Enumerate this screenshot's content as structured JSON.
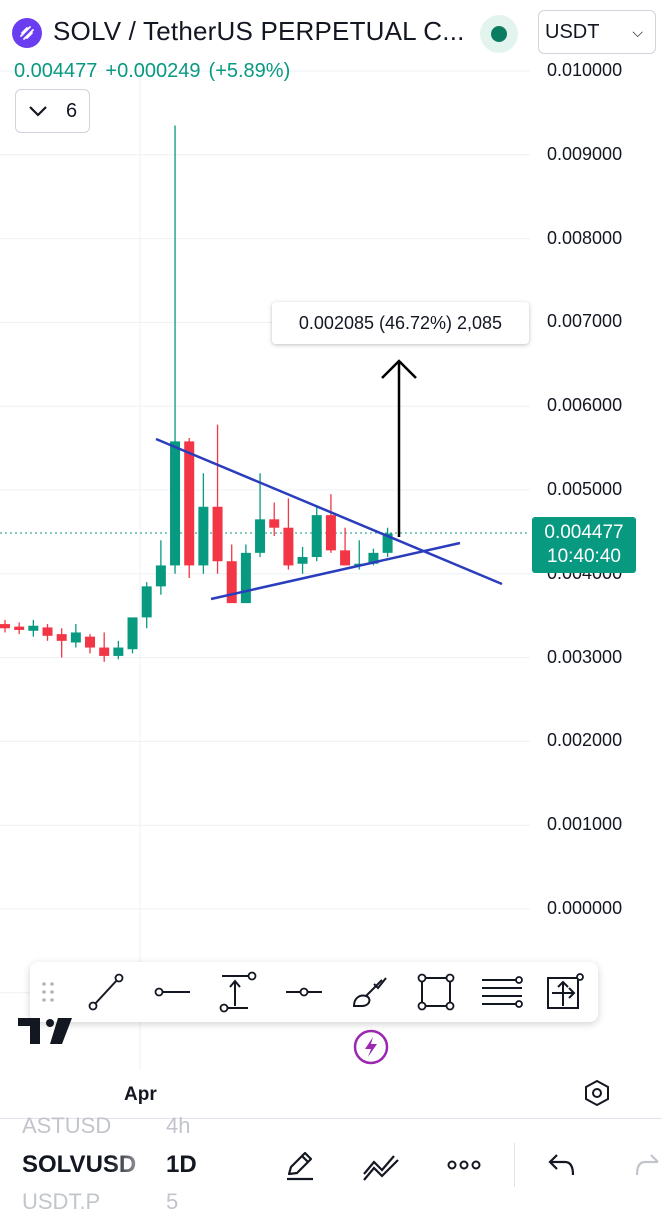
{
  "header": {
    "symbol_title": "SOLV / TetherUS PERPETUAL C...",
    "currency": "USDT",
    "last_price": "0.004477",
    "change_abs": "+0.000249",
    "change_pct": "(+5.89%)",
    "indicators_count": "6",
    "colors": {
      "up": "#089981",
      "down": "#f23645",
      "logo": "#6a3df0"
    }
  },
  "chart_data": {
    "type": "candlestick",
    "y_axis_ticks": [
      "0.010000",
      "0.009000",
      "0.008000",
      "0.007000",
      "0.006000",
      "0.005000",
      "0.004000",
      "0.003000",
      "0.002000",
      "0.001000",
      "0.000000"
    ],
    "ylim": [
      0.0,
      0.01
    ],
    "x_axis_ticks": [
      "Apr"
    ],
    "grid": true,
    "current_price_label": "0.004477",
    "countdown_label": "10:40:40",
    "measure_label": "0.002085 (46.72%) 2,085",
    "candles": [
      {
        "o": 0.0034,
        "h": 0.00345,
        "l": 0.0033,
        "c": 0.00335
      },
      {
        "o": 0.00337,
        "h": 0.00342,
        "l": 0.00328,
        "c": 0.00333
      },
      {
        "o": 0.00332,
        "h": 0.00345,
        "l": 0.00325,
        "c": 0.00338
      },
      {
        "o": 0.00336,
        "h": 0.0034,
        "l": 0.0032,
        "c": 0.00326
      },
      {
        "o": 0.00328,
        "h": 0.00335,
        "l": 0.003,
        "c": 0.0032
      },
      {
        "o": 0.00318,
        "h": 0.0034,
        "l": 0.00312,
        "c": 0.0033
      },
      {
        "o": 0.00325,
        "h": 0.00328,
        "l": 0.00305,
        "c": 0.00312
      },
      {
        "o": 0.00312,
        "h": 0.0033,
        "l": 0.00295,
        "c": 0.00302
      },
      {
        "o": 0.00302,
        "h": 0.0032,
        "l": 0.00298,
        "c": 0.00312
      },
      {
        "o": 0.0031,
        "h": 0.00345,
        "l": 0.00305,
        "c": 0.00348
      },
      {
        "o": 0.00348,
        "h": 0.0039,
        "l": 0.00335,
        "c": 0.00385
      },
      {
        "o": 0.00385,
        "h": 0.0044,
        "l": 0.00375,
        "c": 0.0041
      },
      {
        "o": 0.0041,
        "h": 0.00935,
        "l": 0.004,
        "c": 0.00558
      },
      {
        "o": 0.00558,
        "h": 0.00562,
        "l": 0.00395,
        "c": 0.0041
      },
      {
        "o": 0.0041,
        "h": 0.0052,
        "l": 0.004,
        "c": 0.0048
      },
      {
        "o": 0.0048,
        "h": 0.00578,
        "l": 0.004,
        "c": 0.00415
      },
      {
        "o": 0.00415,
        "h": 0.00435,
        "l": 0.00375,
        "c": 0.00365
      },
      {
        "o": 0.00365,
        "h": 0.00435,
        "l": 0.0037,
        "c": 0.00425
      },
      {
        "o": 0.00425,
        "h": 0.0052,
        "l": 0.0042,
        "c": 0.00465
      },
      {
        "o": 0.00465,
        "h": 0.00485,
        "l": 0.00445,
        "c": 0.00455
      },
      {
        "o": 0.00455,
        "h": 0.0049,
        "l": 0.00405,
        "c": 0.0041
      },
      {
        "o": 0.00412,
        "h": 0.00432,
        "l": 0.004,
        "c": 0.0042
      },
      {
        "o": 0.0042,
        "h": 0.0048,
        "l": 0.00415,
        "c": 0.0047
      },
      {
        "o": 0.0047,
        "h": 0.00495,
        "l": 0.00425,
        "c": 0.00428
      },
      {
        "o": 0.00428,
        "h": 0.00455,
        "l": 0.0041,
        "c": 0.0041
      },
      {
        "o": 0.00412,
        "h": 0.0044,
        "l": 0.00405,
        "c": 0.00412
      },
      {
        "o": 0.00412,
        "h": 0.0043,
        "l": 0.0041,
        "c": 0.00425
      },
      {
        "o": 0.00425,
        "h": 0.00455,
        "l": 0.0042,
        "c": 0.00448
      }
    ]
  },
  "bottom_bar": {
    "ghost_top_symbol": "ASTUSD",
    "ghost_top_interval": "4h",
    "symbol": "SOLVUSD",
    "interval": "1D",
    "ghost_bottom_symbol": "USDT.P",
    "ghost_bottom_interval": "5"
  },
  "icons": {
    "logo": "solv-logo-icon",
    "tv_logo": "tradingview-logo-icon",
    "lightning": "lightning-icon",
    "settings": "settings-hexagon-icon",
    "undo": "undo-icon",
    "redo": "redo-icon"
  }
}
